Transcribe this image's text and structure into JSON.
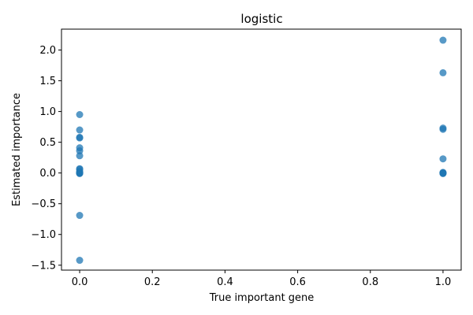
{
  "chart_data": {
    "type": "scatter",
    "title": "logistic",
    "xlabel": "True important gene",
    "ylabel": "Estimated importance",
    "xlim": [
      -0.05,
      1.05
    ],
    "ylim": [
      -1.58,
      2.34
    ],
    "xticks": [
      0.0,
      0.2,
      0.4,
      0.6,
      0.8,
      1.0
    ],
    "xtick_labels": [
      "0.0",
      "0.2",
      "0.4",
      "0.6",
      "0.8",
      "1.0"
    ],
    "yticks": [
      -1.5,
      -1.0,
      -0.5,
      0.0,
      0.5,
      1.0,
      1.5,
      2.0
    ],
    "ytick_labels": [
      "−1.5",
      "−1.0",
      "−0.5",
      "0.0",
      "0.5",
      "1.0",
      "1.5",
      "2.0"
    ],
    "grid": false,
    "marker_color": "#1f77b4",
    "marker_alpha": 0.75,
    "points": [
      {
        "x": 0,
        "y": 0.95
      },
      {
        "x": 0,
        "y": 0.7
      },
      {
        "x": 0,
        "y": 0.58
      },
      {
        "x": 0,
        "y": 0.57
      },
      {
        "x": 0,
        "y": 0.41
      },
      {
        "x": 0,
        "y": 0.36
      },
      {
        "x": 0,
        "y": 0.28
      },
      {
        "x": 0,
        "y": 0.07
      },
      {
        "x": 0,
        "y": 0.06
      },
      {
        "x": 0,
        "y": 0.03
      },
      {
        "x": 0,
        "y": 0.01
      },
      {
        "x": 0,
        "y": 0.0
      },
      {
        "x": 0,
        "y": 0.0
      },
      {
        "x": 0,
        "y": 0.0
      },
      {
        "x": 0,
        "y": -0.01
      },
      {
        "x": 0,
        "y": -0.69
      },
      {
        "x": 0,
        "y": -1.42
      },
      {
        "x": 1,
        "y": 2.16
      },
      {
        "x": 1,
        "y": 1.63
      },
      {
        "x": 1,
        "y": 0.73
      },
      {
        "x": 1,
        "y": 0.71
      },
      {
        "x": 1,
        "y": 0.23
      },
      {
        "x": 1,
        "y": 0.01
      },
      {
        "x": 1,
        "y": 0.0
      },
      {
        "x": 1,
        "y": 0.0
      },
      {
        "x": 1,
        "y": 0.0
      },
      {
        "x": 1,
        "y": -0.01
      }
    ]
  }
}
